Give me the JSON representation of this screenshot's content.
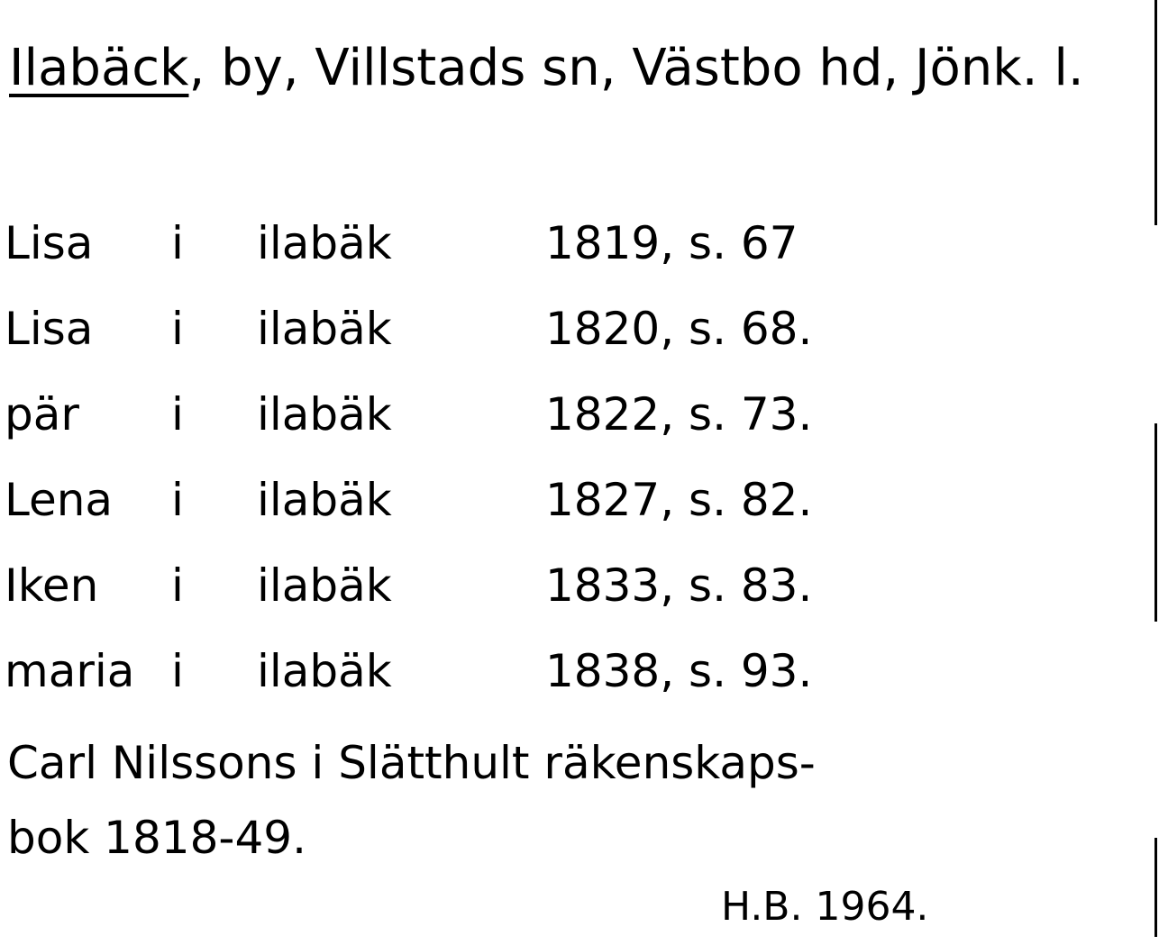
{
  "header": {
    "place": "Ilabäck",
    "description": ", by, Villstads sn, Västbo hd, Jönk. l."
  },
  "entries": [
    {
      "name": "Lisa",
      "i": "i",
      "place": "ilabäk",
      "ref": "1819, s. 67"
    },
    {
      "name": "Lisa",
      "i": "i",
      "place": "ilabäk",
      "ref": "1820, s. 68."
    },
    {
      "name": "pär",
      "i": "i",
      "place": "ilabäk",
      "ref": "1822, s. 73."
    },
    {
      "name": "Lena",
      "i": "i",
      "place": "ilabäk",
      "ref": "1827, s. 82."
    },
    {
      "name": "Iken",
      "i": "i",
      "place": "ilabäk",
      "ref": "1833, s. 83."
    },
    {
      "name": "maria",
      "i": "i",
      "place": "ilabäk",
      "ref": "1838, s. 93."
    }
  ],
  "source": [
    "Carl Nilssons i Slätthult räkenskaps-",
    "bok 1818-49."
  ],
  "signature": "H.B. 1964."
}
